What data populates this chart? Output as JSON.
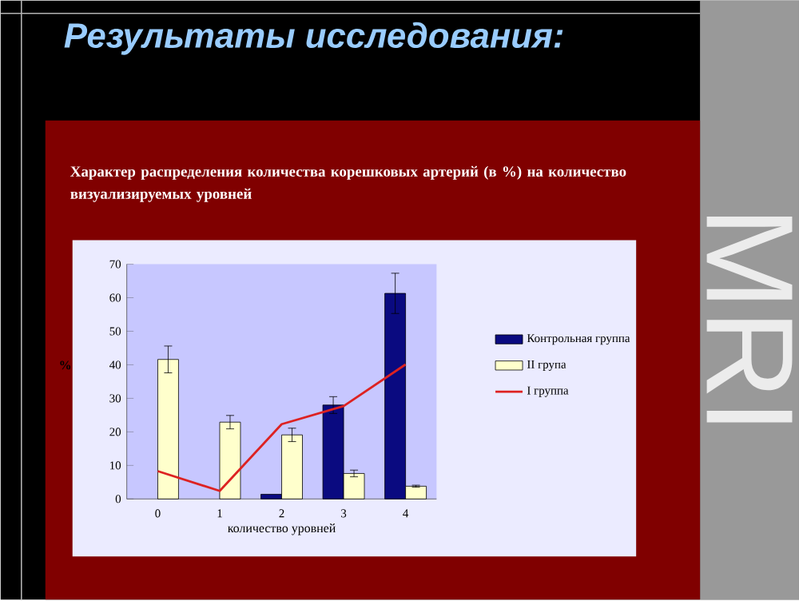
{
  "chart_data": {
    "type": "bar",
    "title": "Результаты исследования:",
    "subtitle": "Характер распределения количества корешковых артерий (в %) на количество  визуализируемых уровней",
    "xlabel": "количество уровней",
    "ylabel": "%",
    "annotations": [
      "MRI"
    ],
    "categories": [
      "0",
      "1",
      "2",
      "3",
      "4"
    ],
    "series": [
      {
        "name": "Контрольная группа",
        "color": "#0a0a80",
        "values": [
          null,
          null,
          1.4,
          28,
          61.3
        ],
        "errors": [
          null,
          null,
          null,
          2.5,
          6
        ]
      },
      {
        "name": "II група",
        "color": "#ffffcc",
        "values": [
          41.6,
          22.9,
          19.1,
          7.6,
          3.8
        ],
        "errors": [
          4,
          2,
          2,
          1,
          0.3
        ]
      },
      {
        "name": "I группа",
        "type": "line",
        "color": "#dd2222",
        "values": [
          8.3,
          2.4,
          22.3,
          27.7,
          40.1
        ]
      }
    ],
    "ylim": [
      0,
      70
    ],
    "yticks": [
      0,
      10,
      20,
      30,
      40,
      50,
      60,
      70
    ],
    "legend": "right",
    "grid": false
  }
}
